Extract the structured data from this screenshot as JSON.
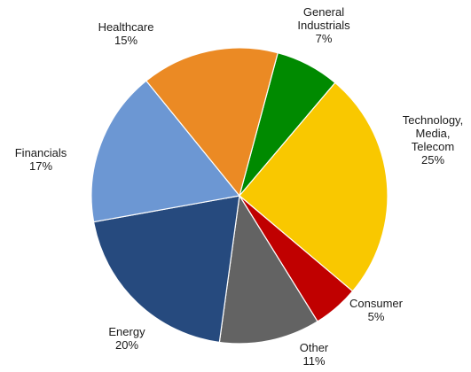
{
  "chart_data": {
    "type": "pie",
    "title": "",
    "legend": "none",
    "slices": [
      {
        "name": "General Industrials",
        "label_lines": [
          "General",
          "Industrials",
          "7%"
        ],
        "value": 7,
        "color": "#008a00"
      },
      {
        "name": "Technology, Media, Telecom",
        "label_lines": [
          "Technology,",
          "Media,",
          "Telecom",
          "25%"
        ],
        "value": 25,
        "color": "#f9c800"
      },
      {
        "name": "Consumer",
        "label_lines": [
          "Consumer",
          "5%"
        ],
        "value": 5,
        "color": "#c00000"
      },
      {
        "name": "Other",
        "label_lines": [
          "Other",
          "11%"
        ],
        "value": 11,
        "color": "#636363"
      },
      {
        "name": "Energy",
        "label_lines": [
          "Energy",
          "20%"
        ],
        "value": 20,
        "color": "#264a7e"
      },
      {
        "name": "Financials",
        "label_lines": [
          "Financials",
          "17%"
        ],
        "value": 17,
        "color": "#6c97d3"
      },
      {
        "name": "Healthcare",
        "label_lines": [
          "Healthcare",
          "15%"
        ],
        "value": 15,
        "color": "#eb8a24"
      }
    ]
  }
}
